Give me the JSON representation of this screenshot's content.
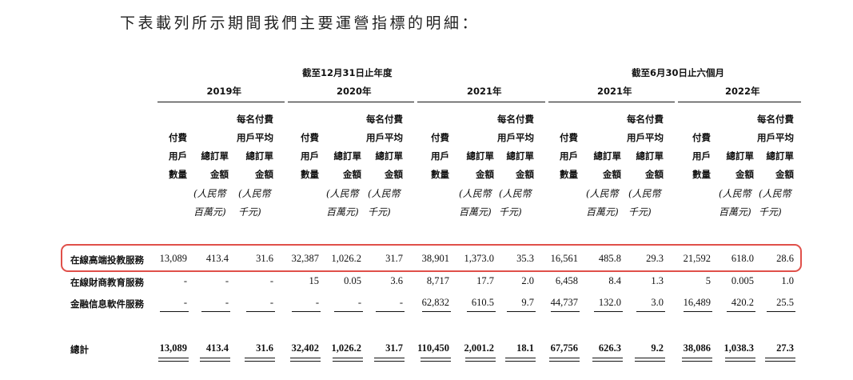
{
  "intro": "下表載列所示期間我們主要運營指標的明細：",
  "group_headers": {
    "annual": "截至12月31日止年度",
    "six_months": "截至6月30日止六個月"
  },
  "years": [
    "2019年",
    "2020年",
    "2021年",
    "2021年",
    "2022年"
  ],
  "column_headers": {
    "paying_users": [
      "付費",
      "用戶",
      "數量"
    ],
    "total_order": [
      "總訂單",
      "金額"
    ],
    "total_order_unit": [
      "(人民幣",
      "百萬元)"
    ],
    "avg_order": [
      "每名付費",
      "用戶平均",
      "總訂單",
      "金額"
    ],
    "avg_order_unit": [
      "(人民幣",
      "千元)"
    ]
  },
  "rows": [
    {
      "label": "在線高端投教服務",
      "values": [
        "13,089",
        "413.4",
        "31.6",
        "32,387",
        "1,026.2",
        "31.7",
        "38,901",
        "1,373.0",
        "35.3",
        "16,561",
        "485.8",
        "29.3",
        "21,592",
        "618.0",
        "28.6"
      ]
    },
    {
      "label": "在線財商教育服務",
      "values": [
        "-",
        "-",
        "-",
        "15",
        "0.05",
        "3.6",
        "8,717",
        "17.7",
        "2.0",
        "6,458",
        "8.4",
        "1.3",
        "5",
        "0.005",
        "1.0"
      ]
    },
    {
      "label": "金融信息軟件服務",
      "values": [
        "-",
        "-",
        "-",
        "-",
        "-",
        "-",
        "62,832",
        "610.5",
        "9.7",
        "44,737",
        "132.0",
        "3.0",
        "16,489",
        "420.2",
        "25.5"
      ]
    }
  ],
  "total": {
    "label": "總計",
    "values": [
      "13,089",
      "413.4",
      "31.6",
      "32,402",
      "1,026.2",
      "31.7",
      "110,450",
      "2,001.2",
      "18.1",
      "67,756",
      "626.3",
      "9.2",
      "38,086",
      "1,038.3",
      "27.3"
    ]
  },
  "highlight_color": "#e0504a"
}
